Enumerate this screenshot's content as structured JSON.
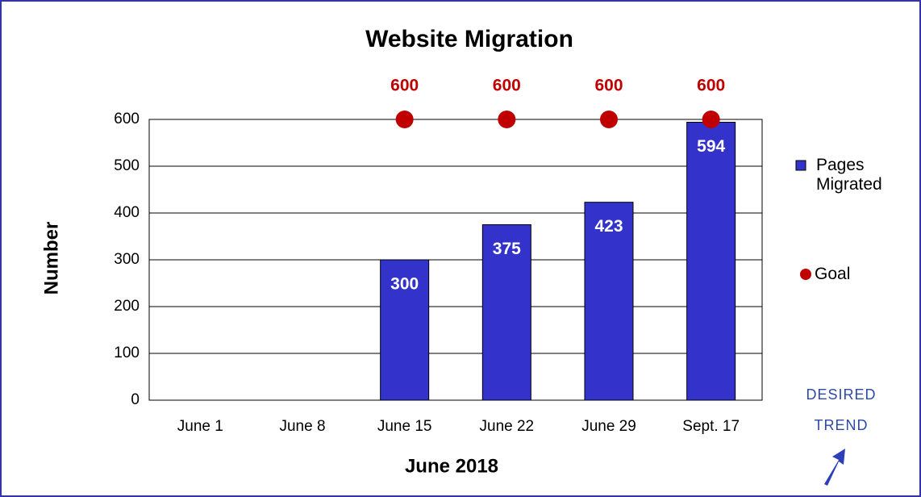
{
  "chart_data": {
    "type": "bar",
    "title": "Website Migration",
    "xlabel": "June 2018",
    "ylabel": "Number",
    "categories": [
      "June 1",
      "June 8",
      "June 15",
      "June 22",
      "June 29",
      "Sept. 17"
    ],
    "series": [
      {
        "name": "Pages Migrated",
        "type": "bar",
        "color": "#3333cc",
        "values": [
          null,
          null,
          300,
          375,
          423,
          594
        ]
      },
      {
        "name": "Goal",
        "type": "scatter",
        "color": "#c00000",
        "values": [
          null,
          null,
          600,
          600,
          600,
          600
        ]
      }
    ],
    "ylim": [
      0,
      600
    ],
    "yticks": [
      0,
      100,
      200,
      300,
      400,
      500,
      600
    ],
    "grid": true,
    "legend": "right",
    "annotation": [
      "DESIRED",
      "TREND"
    ]
  }
}
